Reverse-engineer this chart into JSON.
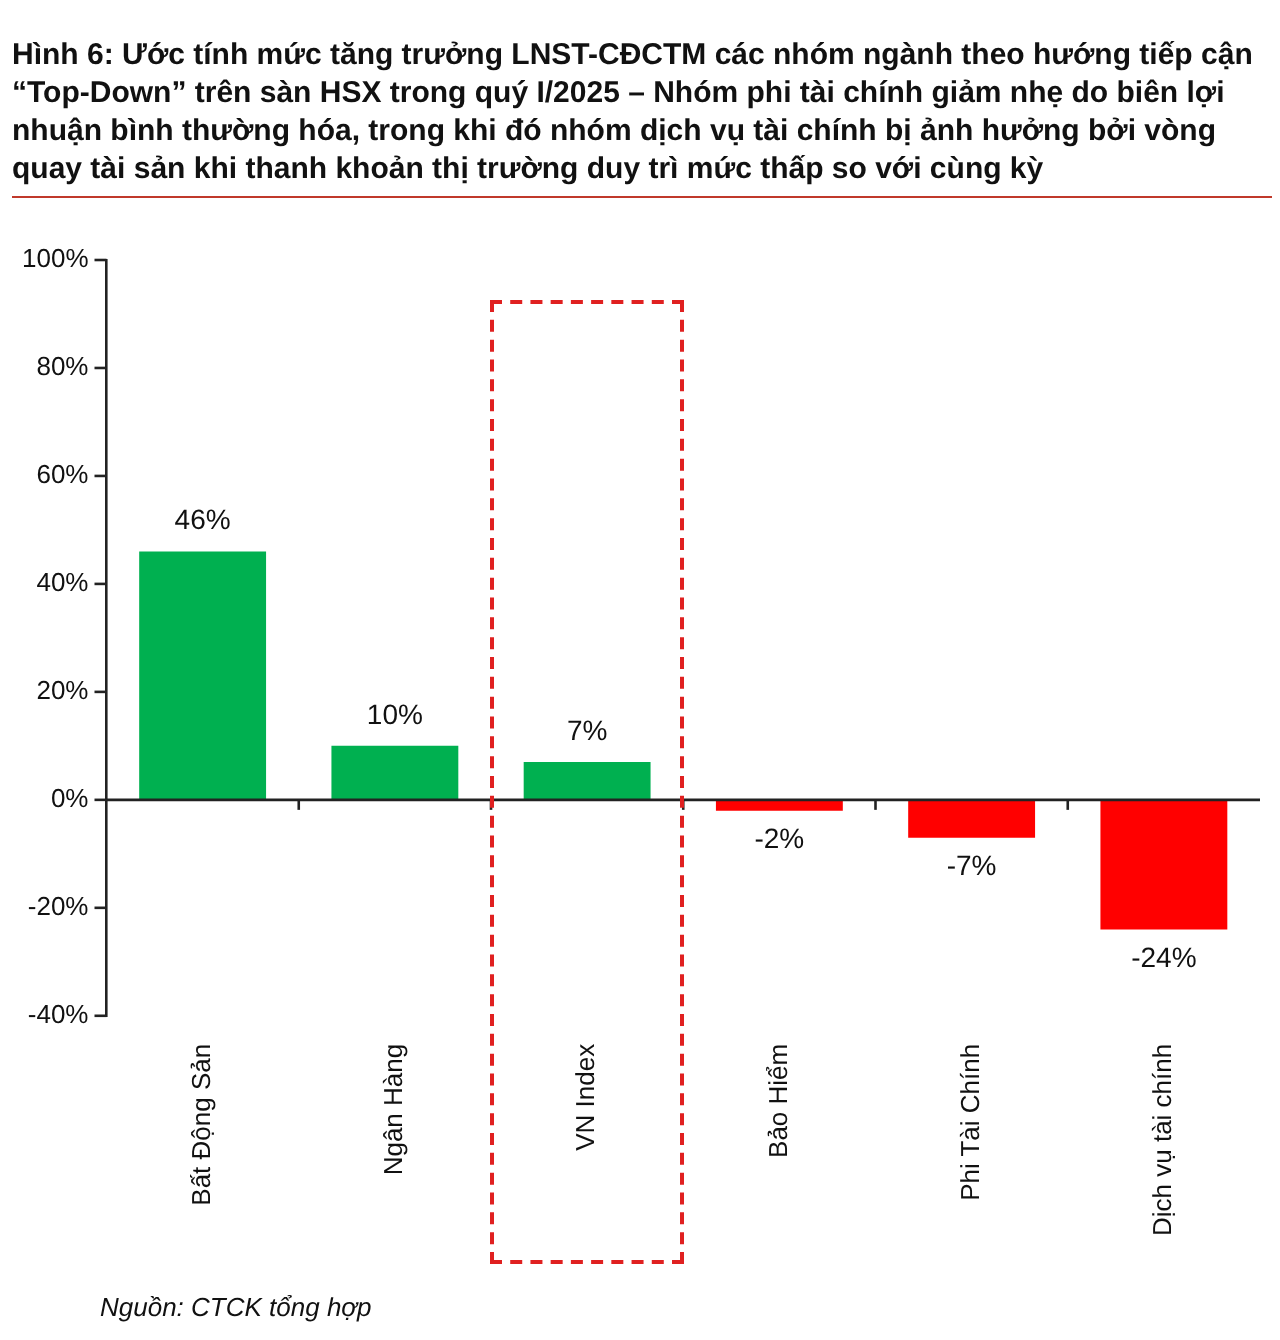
{
  "chart_data": {
    "type": "bar",
    "title": "Hình 6: Ước tính mức tăng trưởng LNST-CĐCTM các nhóm ngành theo hướng tiếp cận “Top-Down” trên sàn HSX trong quý I/2025 – Nhóm phi tài chính giảm nhẹ do biên lợi nhuận bình thường hóa, trong khi đó nhóm dịch vụ tài chính bị ảnh hưởng bởi vòng quay tài sản khi thanh khoản thị trường duy trì mức thấp so với cùng kỳ",
    "categories": [
      "Bất Động Sản",
      "Ngân Hàng",
      "VN Index",
      "Bảo Hiểm",
      "Phi Tài Chính",
      "Dịch vụ tài chính"
    ],
    "values": [
      46,
      10,
      7,
      -2,
      -7,
      -24
    ],
    "colors": [
      "#00b050",
      "#00b050",
      "#00b050",
      "#ff0000",
      "#ff0000",
      "#ff0000"
    ],
    "value_labels": [
      "46%",
      "10%",
      "7%",
      "-2%",
      "-7%",
      "-24%"
    ],
    "ylim": [
      -40,
      100
    ],
    "yticks": [
      {
        "value": -40,
        "label": "-40%"
      },
      {
        "value": -20,
        "label": "-20%"
      },
      {
        "value": 0,
        "label": "0%"
      },
      {
        "value": 20,
        "label": "20%"
      },
      {
        "value": 40,
        "label": "40%"
      },
      {
        "value": 60,
        "label": "60%"
      },
      {
        "value": 80,
        "label": "80%"
      },
      {
        "value": 100,
        "label": "100%"
      }
    ],
    "legend": false,
    "annotations": [
      "Nguồn: CTCK tổng hợp"
    ]
  }
}
